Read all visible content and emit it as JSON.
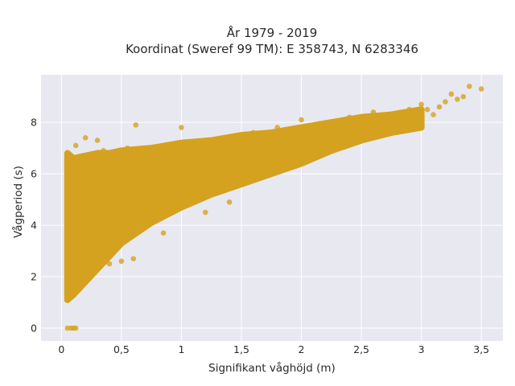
{
  "chart_data": {
    "type": "scatter",
    "title_line1": "År 1979 - 2019",
    "title_line2": "Koordinat (Sweref 99 TM): E 358743, N 6283346",
    "xlabel": "Signifikant våghöjd (m)",
    "ylabel": "Vågperiod (s)",
    "xlim": [
      -0.17,
      3.68
    ],
    "ylim": [
      -0.5,
      9.85
    ],
    "xticks": [
      0,
      0.5,
      1,
      1.5,
      2,
      2.5,
      3,
      3.5
    ],
    "xtick_labels": [
      "0",
      "0,5",
      "1",
      "1,5",
      "2",
      "2,5",
      "3",
      "3,5"
    ],
    "yticks": [
      0,
      2,
      4,
      6,
      8
    ],
    "ytick_labels": [
      "0",
      "2",
      "4",
      "6",
      "8"
    ],
    "grid": true,
    "colors": {
      "marker": "#D4A21F",
      "plot_bg": "#E8E8F0",
      "grid": "#ffffff"
    },
    "band": [
      [
        0.05,
        1.1,
        6.8
      ],
      [
        0.1,
        1.3,
        6.6
      ],
      [
        0.2,
        1.8,
        6.7
      ],
      [
        0.3,
        2.3,
        6.8
      ],
      [
        0.4,
        2.8,
        6.8
      ],
      [
        0.5,
        3.3,
        6.9
      ],
      [
        0.75,
        4.1,
        7.0
      ],
      [
        1.0,
        4.7,
        7.2
      ],
      [
        1.25,
        5.2,
        7.3
      ],
      [
        1.5,
        5.6,
        7.5
      ],
      [
        1.75,
        6.0,
        7.6
      ],
      [
        2.0,
        6.4,
        7.8
      ],
      [
        2.25,
        6.9,
        8.0
      ],
      [
        2.5,
        7.3,
        8.2
      ],
      [
        2.75,
        7.6,
        8.3
      ],
      [
        3.0,
        7.8,
        8.5
      ]
    ],
    "points": [
      [
        0.05,
        0.0
      ],
      [
        0.08,
        0.0
      ],
      [
        0.1,
        0.0
      ],
      [
        0.12,
        0.0
      ],
      [
        0.05,
        1.5
      ],
      [
        0.08,
        1.2
      ],
      [
        0.15,
        1.6
      ],
      [
        0.2,
        1.8
      ],
      [
        0.3,
        2.3
      ],
      [
        0.4,
        2.5
      ],
      [
        0.5,
        2.6
      ],
      [
        0.6,
        2.7
      ],
      [
        0.05,
        6.6
      ],
      [
        0.12,
        7.1
      ],
      [
        0.2,
        7.4
      ],
      [
        0.3,
        7.3
      ],
      [
        0.35,
        6.9
      ],
      [
        0.45,
        6.8
      ],
      [
        0.55,
        7.0
      ],
      [
        0.62,
        7.9
      ],
      [
        0.7,
        7.0
      ],
      [
        1.0,
        7.8
      ],
      [
        0.85,
        3.7
      ],
      [
        1.2,
        4.5
      ],
      [
        1.4,
        4.9
      ],
      [
        1.6,
        7.6
      ],
      [
        1.8,
        7.8
      ],
      [
        2.0,
        8.1
      ],
      [
        2.2,
        7.9
      ],
      [
        2.4,
        8.2
      ],
      [
        2.5,
        7.7
      ],
      [
        2.6,
        8.4
      ],
      [
        2.7,
        8.1
      ],
      [
        2.8,
        8.2
      ],
      [
        2.9,
        8.5
      ],
      [
        3.0,
        8.7
      ],
      [
        3.1,
        8.3
      ],
      [
        3.2,
        8.8
      ],
      [
        3.25,
        9.1
      ],
      [
        3.3,
        8.9
      ],
      [
        3.35,
        9.0
      ],
      [
        3.4,
        9.4
      ],
      [
        3.5,
        9.3
      ],
      [
        3.05,
        8.5
      ],
      [
        3.15,
        8.6
      ],
      [
        2.95,
        8.2
      ],
      [
        1.55,
        7.4
      ],
      [
        1.3,
        7.2
      ],
      [
        0.9,
        6.4
      ],
      [
        0.25,
        4.5
      ]
    ]
  }
}
